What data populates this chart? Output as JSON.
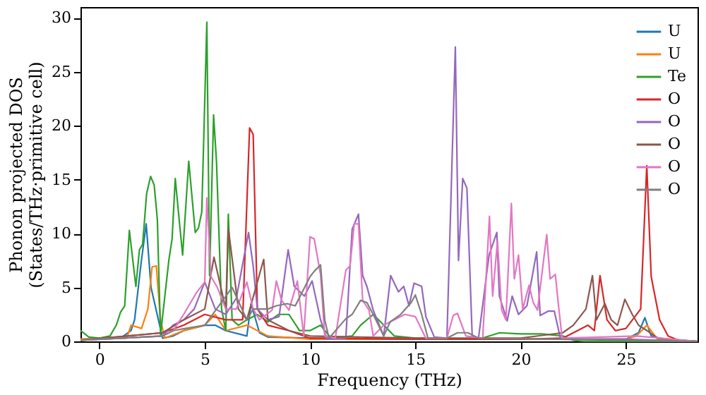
{
  "chart_data": {
    "type": "line",
    "xlabel": "Frequency (THz)",
    "ylabel": "Phonon projected DOS\n(States/THz·primitive cell)",
    "xlim": [
      -0.9,
      28.4
    ],
    "ylim": [
      0,
      31
    ],
    "xticks": [
      0,
      5,
      10,
      15,
      20,
      25
    ],
    "yticks": [
      0,
      5,
      10,
      15,
      20,
      25,
      30
    ],
    "grid": false,
    "legend": "top right",
    "series": [
      {
        "name": "U",
        "color": "#1f77b4",
        "x": [
          -0.9,
          0,
          1,
          1.5,
          1.67,
          1.98,
          2.22,
          2.45,
          2.8,
          3.0,
          3.5,
          4,
          5,
          5.5,
          6,
          7,
          7.2,
          7.6,
          8,
          10,
          15,
          20,
          25,
          25.6,
          25.9,
          26.2,
          27,
          28.4
        ],
        "values": [
          0.2,
          0.2,
          0.3,
          1,
          2,
          7.3,
          10.9,
          5,
          2,
          0.3,
          0.5,
          1,
          1.5,
          1.5,
          1,
          0.5,
          3.5,
          0.8,
          0.4,
          0.3,
          0.2,
          0.2,
          0.2,
          0.8,
          2.2,
          0.5,
          0.1,
          0
        ]
      },
      {
        "name": "U",
        "color": "#ff7f0e",
        "x": [
          -0.9,
          0,
          1.3,
          1.5,
          2.0,
          2.3,
          2.5,
          2.7,
          2.9,
          3.1,
          4,
          5,
          5.5,
          6,
          7,
          8,
          10,
          15,
          20,
          25,
          25.5,
          26,
          26.5,
          28.4
        ],
        "values": [
          0.2,
          0.3,
          0.3,
          1.5,
          1.2,
          3,
          6.9,
          7,
          2,
          0.3,
          1,
          1.5,
          2.5,
          1,
          1.5,
          0.5,
          0.2,
          0.2,
          0.2,
          0.2,
          0.5,
          1.5,
          0.2,
          0
        ]
      },
      {
        "name": "Te",
        "color": "#2ca02c",
        "x": [
          -0.9,
          -0.5,
          0,
          0.5,
          0.8,
          1.0,
          1.2,
          1.42,
          1.73,
          1.9,
          2.05,
          2.24,
          2.43,
          2.6,
          2.75,
          2.9,
          3.3,
          3.45,
          3.6,
          3.8,
          3.95,
          4.24,
          4.55,
          4.7,
          4.86,
          5.1,
          5.23,
          5.42,
          5.56,
          5.8,
          6.0,
          6.12,
          6.3,
          6.6,
          7,
          7.5,
          8,
          8.5,
          9,
          9.5,
          10,
          10.5,
          11,
          12,
          12.4,
          13,
          13.5,
          14,
          15,
          16,
          17,
          18,
          19,
          20,
          21,
          22,
          22.5,
          23,
          28.4
        ],
        "values": [
          1.0,
          0.4,
          0.3,
          0.5,
          1.5,
          2.7,
          3.3,
          10.3,
          5.1,
          8.5,
          9,
          13.7,
          15.3,
          14.5,
          11.3,
          0.6,
          7.6,
          9.5,
          15.1,
          11,
          8,
          16.7,
          10.1,
          10.5,
          12,
          29.6,
          6.1,
          21,
          16.6,
          3,
          1,
          11.8,
          2,
          1.5,
          2,
          2.5,
          1.8,
          2.5,
          2.5,
          1,
          1,
          1.5,
          0.3,
          0.5,
          1.5,
          2.5,
          1.5,
          0.5,
          0.3,
          0.3,
          0.2,
          0.2,
          0.8,
          0.7,
          0.7,
          0.5,
          0.1,
          0,
          0
        ]
      },
      {
        "name": "O",
        "color": "#d62728",
        "x": [
          -0.9,
          3,
          4,
          5,
          6,
          6.8,
          7.13,
          7.3,
          7.5,
          8,
          9,
          10,
          15,
          20,
          22,
          22.7,
          23.2,
          23.5,
          23.77,
          24.1,
          24.5,
          25,
          25.7,
          25.99,
          26.2,
          26.6,
          27,
          27.5,
          28.4
        ],
        "values": [
          0.1,
          0.8,
          1.5,
          2.5,
          2,
          2,
          19.8,
          19.2,
          3,
          1.5,
          1,
          0.3,
          0.2,
          0.2,
          0.3,
          1,
          1.5,
          1,
          6.1,
          2,
          1,
          1.2,
          3,
          16.3,
          6,
          2,
          0.5,
          0.1,
          0
        ]
      },
      {
        "name": "O",
        "color": "#9467bd",
        "x": [
          -0.9,
          3,
          3.5,
          4,
          4.5,
          5,
          5.5,
          6,
          6.5,
          7.08,
          7.3,
          7.5,
          8,
          8.53,
          8.96,
          9.25,
          9.73,
          10.1,
          10.5,
          10.8,
          11.7,
          12.0,
          12.3,
          12.5,
          12.7,
          13.0,
          13.5,
          13.83,
          14.2,
          14.45,
          14.7,
          14.94,
          15.3,
          15.5,
          15.9,
          16.5,
          16.9,
          17.05,
          17.25,
          17.45,
          17.7,
          18,
          18.5,
          18.87,
          18.99,
          19.36,
          19.6,
          19.9,
          20.3,
          20.76,
          20.93,
          21.3,
          21.6,
          21.9,
          25,
          28.4
        ],
        "values": [
          0.1,
          0.5,
          1.5,
          2,
          3,
          5.5,
          3,
          2.5,
          4,
          10.1,
          7,
          3,
          2,
          2.3,
          8.5,
          5.1,
          4.2,
          5.6,
          2,
          0.2,
          0.3,
          10.4,
          11.8,
          6.1,
          5.1,
          2.9,
          0.5,
          6.1,
          4.6,
          5.1,
          3.3,
          5.4,
          5.1,
          2.3,
          0.4,
          0.3,
          27.3,
          7.5,
          15.1,
          14.2,
          0.5,
          0.3,
          8,
          10.1,
          4.2,
          1.9,
          4.2,
          2.5,
          3.3,
          8.3,
          2.4,
          2.8,
          2.8,
          0.2,
          0.2,
          0
        ]
      },
      {
        "name": "O",
        "color": "#8c564b",
        "x": [
          -0.9,
          3,
          4,
          5,
          5.44,
          6,
          6.12,
          6.6,
          7,
          7.8,
          8,
          9,
          10,
          15,
          20,
          22,
          22.5,
          23.1,
          23.41,
          23.6,
          24.0,
          24.3,
          24.6,
          24.95,
          25.3,
          25.6,
          26,
          26.5,
          28.4
        ],
        "values": [
          0.1,
          0.8,
          2,
          3,
          7.8,
          3,
          10.5,
          3,
          2,
          7.6,
          2,
          1,
          0.5,
          0.3,
          0.3,
          0.8,
          1.5,
          3,
          6.1,
          2,
          3.5,
          2,
          1.5,
          3.9,
          2.5,
          1.5,
          1,
          0.3,
          0
        ]
      },
      {
        "name": "O",
        "color": "#e377c2",
        "x": [
          -0.9,
          3,
          3.5,
          4,
          4.3,
          4.6,
          5.0,
          5.1,
          5.3,
          5.6,
          6,
          6.5,
          7,
          7.3,
          7.6,
          8.2,
          8.4,
          8.65,
          9.0,
          9.4,
          9.7,
          10.0,
          10.2,
          10.5,
          10.7,
          11.2,
          11.7,
          11.9,
          12.1,
          12.3,
          12.5,
          12.8,
          13.0,
          13.5,
          14.5,
          15.0,
          15.5,
          15.9,
          16.5,
          16.8,
          17.0,
          17.4,
          18.2,
          18.52,
          18.67,
          18.9,
          19.1,
          19.3,
          19.56,
          19.7,
          19.9,
          20.1,
          20.4,
          20.6,
          20.8,
          21.24,
          21.4,
          21.65,
          21.8,
          21.97,
          25.5,
          28.4
        ],
        "values": [
          0.1,
          0.5,
          1,
          2.5,
          3.5,
          4.5,
          5.5,
          13.3,
          6,
          5,
          3,
          3,
          5.5,
          3,
          2,
          2.9,
          5.6,
          3.8,
          2.9,
          5.6,
          0.5,
          9.7,
          9.5,
          6.2,
          0.5,
          0.3,
          6.6,
          7,
          10.9,
          10.9,
          3.8,
          2.9,
          0.5,
          1.5,
          2.5,
          2.3,
          0.3,
          0.3,
          0.3,
          2.4,
          2.6,
          0.5,
          0.3,
          11.6,
          4.2,
          9.3,
          2.9,
          2,
          12.8,
          5.8,
          8,
          3,
          5.2,
          3.6,
          2.9,
          9.9,
          5.8,
          6.2,
          3.3,
          0.3,
          0.5,
          0
        ]
      },
      {
        "name": "O",
        "color": "#7f7f7f",
        "x": [
          -0.9,
          3,
          3.5,
          5,
          6.3,
          7,
          7.3,
          8,
          8.4,
          8.9,
          9.3,
          10.0,
          10.2,
          10.5,
          10.7,
          10.9,
          11.7,
          12.0,
          12.4,
          12.7,
          13.0,
          13.5,
          13.8,
          14.3,
          14.8,
          15.0,
          15.3,
          15.6,
          16.5,
          17.0,
          17.5,
          18,
          28.4
        ],
        "values": [
          0.1,
          0.5,
          1,
          1.5,
          5,
          2,
          3,
          3,
          3.3,
          3.5,
          3.3,
          6,
          6.5,
          7.1,
          2,
          0.3,
          2.1,
          2.5,
          3.8,
          3.6,
          2.5,
          0.5,
          1.8,
          2.5,
          3.6,
          4.3,
          2.5,
          0.3,
          0.3,
          0.8,
          0.8,
          0.3,
          0
        ]
      }
    ]
  }
}
